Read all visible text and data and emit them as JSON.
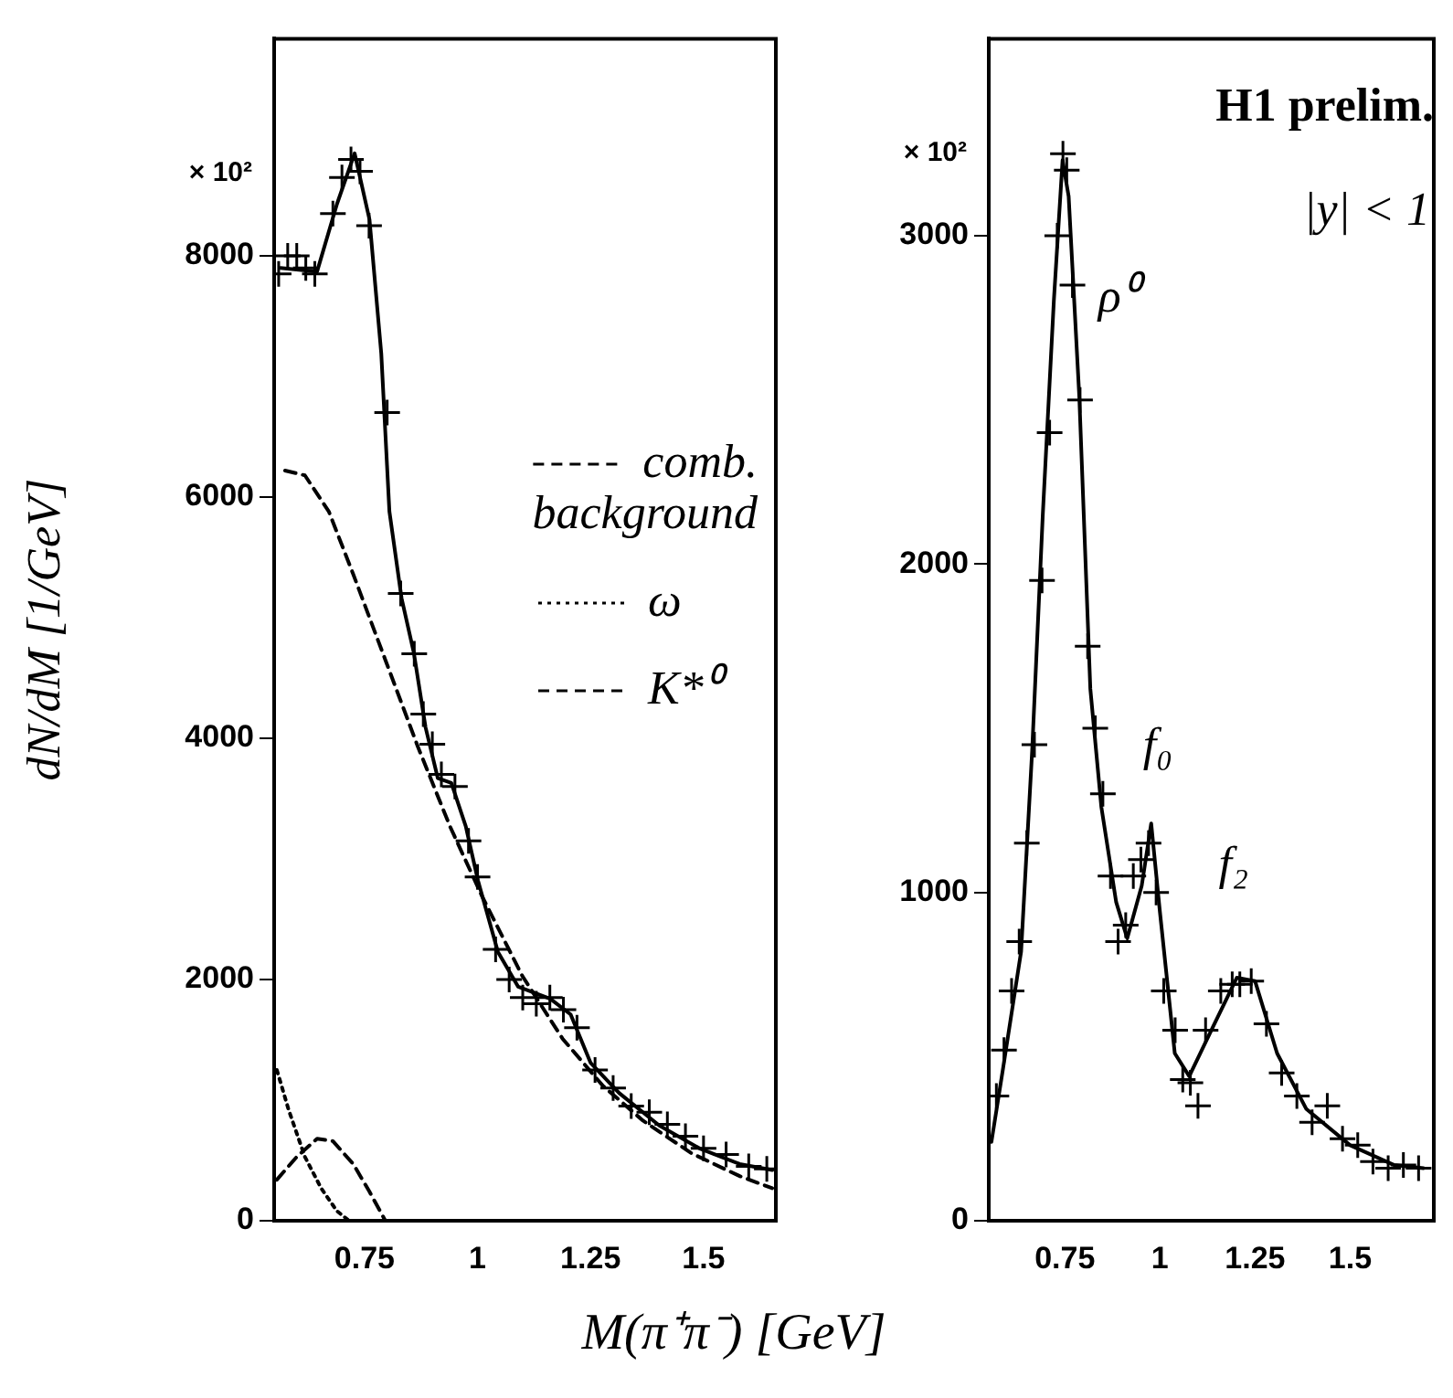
{
  "chart_data": [
    {
      "type": "line",
      "xlabel": "M(π⁺π⁻) [GeV]",
      "ylabel": "dN/dM [1/GeV]",
      "xlim": [
        0.55,
        1.66
      ],
      "ylim": [
        0,
        9800
      ],
      "xticks": [
        0.75,
        1,
        1.25,
        1.5
      ],
      "yticks": [
        0,
        2000,
        4000,
        6000,
        8000
      ],
      "grid": false,
      "legend": "right",
      "annotations": [
        "× 10²"
      ],
      "series": [
        {
          "type": "scatter",
          "marker": "cross",
          "color": "#000000",
          "x": [
            0.56,
            0.58,
            0.6,
            0.62,
            0.64,
            0.68,
            0.7,
            0.72,
            0.74,
            0.76,
            0.8,
            0.83,
            0.86,
            0.88,
            0.9,
            0.92,
            0.95,
            0.98,
            1.0,
            1.04,
            1.07,
            1.1,
            1.13,
            1.16,
            1.19,
            1.22,
            1.26,
            1.3,
            1.34,
            1.38,
            1.42,
            1.46,
            1.5,
            1.55,
            1.6,
            1.64
          ],
          "values": [
            7850,
            8000,
            8000,
            7900,
            7850,
            8350,
            8650,
            8800,
            8700,
            8250,
            6700,
            5200,
            4700,
            4200,
            3950,
            3700,
            3600,
            3150,
            2850,
            2250,
            2000,
            1850,
            1800,
            1850,
            1750,
            1600,
            1250,
            1100,
            950,
            900,
            800,
            700,
            600,
            550,
            450,
            430
          ]
        },
        {
          "type": "line",
          "line_style": "solid",
          "color": "#000000",
          "x": [
            0.564,
            0.645,
            0.689,
            0.728,
            0.761,
            0.787,
            0.805,
            0.832,
            0.859,
            0.885,
            0.912,
            0.942,
            0.974,
            1.001,
            1.045,
            1.09,
            1.161,
            1.206,
            1.25,
            1.313,
            1.402,
            1.491,
            1.58,
            1.652
          ],
          "values": [
            7900,
            7870,
            8430,
            8850,
            8300,
            7190,
            5880,
            5160,
            4710,
            4090,
            3670,
            3630,
            3270,
            2820,
            2230,
            1940,
            1840,
            1710,
            1310,
            1060,
            790,
            600,
            470,
            420
          ]
        },
        {
          "type": "line",
          "name": "comb. background",
          "line_style": "dashed",
          "color": "#000000",
          "x": [
            0.574,
            0.618,
            0.671,
            0.725,
            0.796,
            0.868,
            0.939,
            1.01,
            1.099,
            1.188,
            1.277,
            1.366,
            1.473,
            1.58,
            1.652
          ],
          "values": [
            6220,
            6180,
            5880,
            5360,
            4650,
            3930,
            3270,
            2690,
            2030,
            1510,
            1120,
            830,
            560,
            370,
            270
          ]
        },
        {
          "type": "line",
          "name": "ω",
          "line_style": "dotted",
          "color": "#000000",
          "x": [
            0.556,
            0.582,
            0.618,
            0.654,
            0.689,
            0.716
          ],
          "values": [
            1250,
            920,
            530,
            270,
            80,
            0
          ]
        },
        {
          "type": "line",
          "name": "K*⁰",
          "line_style": "dashed",
          "color": "#000000",
          "x": [
            0.556,
            0.6,
            0.645,
            0.68,
            0.725,
            0.761,
            0.796
          ],
          "values": [
            340,
            530,
            680,
            660,
            470,
            240,
            0
          ]
        }
      ]
    },
    {
      "type": "line",
      "xlim": [
        0.55,
        1.72
      ],
      "ylim": [
        0,
        3600
      ],
      "xticks": [
        0.75,
        1,
        1.25,
        1.5
      ],
      "yticks": [
        0,
        1000,
        2000,
        3000
      ],
      "grid": false,
      "annotations": [
        "× 10²",
        "H1 prelim.",
        "|y| < 1",
        "ρ⁰",
        "f₀",
        "f₂"
      ],
      "series": [
        {
          "type": "scatter",
          "marker": "cross",
          "color": "#000000",
          "x": [
            0.57,
            0.59,
            0.61,
            0.63,
            0.65,
            0.67,
            0.69,
            0.71,
            0.73,
            0.745,
            0.755,
            0.77,
            0.79,
            0.81,
            0.83,
            0.85,
            0.87,
            0.89,
            0.91,
            0.93,
            0.95,
            0.97,
            0.99,
            1.01,
            1.04,
            1.06,
            1.08,
            1.1,
            1.12,
            1.16,
            1.19,
            1.21,
            1.24,
            1.28,
            1.32,
            1.36,
            1.4,
            1.44,
            1.48,
            1.52,
            1.56,
            1.6,
            1.64,
            1.68
          ],
          "values": [
            380,
            520,
            700,
            850,
            1150,
            1450,
            1950,
            2400,
            3000,
            3250,
            3200,
            2850,
            2500,
            1750,
            1500,
            1300,
            1050,
            850,
            900,
            1050,
            1100,
            1150,
            1000,
            700,
            580,
            430,
            420,
            350,
            580,
            700,
            720,
            720,
            730,
            600,
            450,
            380,
            300,
            350,
            250,
            230,
            180,
            160,
            170,
            160
          ]
        },
        {
          "type": "line",
          "line_style": "solid",
          "color": "#000000",
          "x": [
            0.557,
            0.587,
            0.635,
            0.664,
            0.692,
            0.721,
            0.744,
            0.76,
            0.788,
            0.817,
            0.846,
            0.885,
            0.914,
            0.952,
            0.977,
            1.0,
            1.039,
            1.077,
            1.135,
            1.202,
            1.25,
            1.308,
            1.385,
            1.5,
            1.615,
            1.693
          ],
          "values": [
            240,
            460,
            820,
            1430,
            2150,
            2800,
            3230,
            3120,
            2510,
            1620,
            1260,
            970,
            860,
            1020,
            1210,
            940,
            510,
            440,
            580,
            740,
            730,
            510,
            340,
            230,
            170,
            160
          ]
        }
      ]
    }
  ]
}
